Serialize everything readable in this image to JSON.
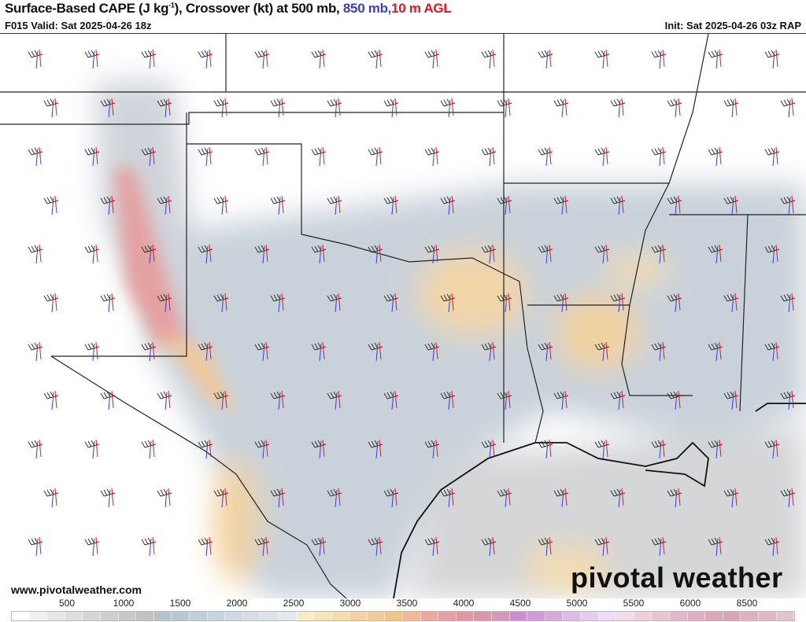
{
  "header": {
    "title_main": "Surface-Based CAPE (J kg",
    "title_sup": "-1",
    "title_mid": "), Crossover (kt) at 500 mb, ",
    "title_850": "850 mb,",
    "title_10m": "10 m AGL",
    "valid": "F015 Valid: Sat 2025-04-26 18z",
    "init": "Init: Sat 2025-04-26 03z RAP"
  },
  "footer": {
    "website": "www.pivotalweather.com",
    "logo": "pivotal weather"
  },
  "colors": {
    "850mb": "#3b3bd1",
    "10m": "#e8141b",
    "500mb": "#333333"
  },
  "colorbar": {
    "labels": [
      "500",
      "1000",
      "1500",
      "2000",
      "2500",
      "3000",
      "3500",
      "4000",
      "4500",
      "5000",
      "5500",
      "6000",
      "8500"
    ],
    "colors": [
      "#ffffff",
      "#f0f0f0",
      "#e6e6e6",
      "#dedede",
      "#d6d6d6",
      "#cfcfcf",
      "#c8c8c8",
      "#c2c2c2",
      "#b8c0c8",
      "#bcc6cf",
      "#c4ced6",
      "#cad4dc",
      "#d0d9e0",
      "#d6dee4",
      "#dce3e8",
      "#e2e8ec",
      "#f8ecc8",
      "#f6e4bd",
      "#f4dcb0",
      "#f2d4a4",
      "#f0cc98",
      "#eec48c",
      "#eeb89a",
      "#eaa8a0",
      "#e4a0a4",
      "#dc98a4",
      "#d698aa",
      "#d29ab8",
      "#c890cc",
      "#cc9cd4",
      "#d4acdc",
      "#dcbce4",
      "#e4cceb",
      "#eedcf2",
      "#f0dce6",
      "#ecd0dc",
      "#e6c4d2",
      "#e0b8c8",
      "#dcb0c0",
      "#d8aab8",
      "#d8a6b4",
      "#dcb0bc",
      "#e0bac4",
      "#e4c4cc"
    ]
  }
}
